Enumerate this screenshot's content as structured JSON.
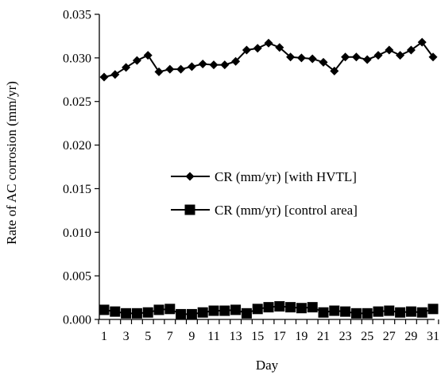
{
  "chart_data": {
    "type": "line",
    "title": "",
    "xlabel": "Day",
    "ylabel": "Rate of AC corrosion (mm/yr)",
    "xlim": [
      1,
      31
    ],
    "ylim": [
      0,
      0.035
    ],
    "x_ticks": [
      "1",
      "3",
      "5",
      "7",
      "9",
      "11",
      "13",
      "15",
      "17",
      "19",
      "21",
      "23",
      "25",
      "27",
      "29",
      "31"
    ],
    "y_ticks": [
      "0.000",
      "0.005",
      "0.010",
      "0.015",
      "0.020",
      "0.025",
      "0.030",
      "0.035"
    ],
    "x": [
      1,
      2,
      3,
      4,
      5,
      6,
      7,
      8,
      9,
      10,
      11,
      12,
      13,
      14,
      15,
      16,
      17,
      18,
      19,
      20,
      21,
      22,
      23,
      24,
      25,
      26,
      27,
      28,
      29,
      30,
      31
    ],
    "legend_position": "center-right",
    "grid": false,
    "series": [
      {
        "name": "CR (mm/yr) [with HVTL]",
        "marker": "diamond",
        "color": "#000000",
        "values": [
          0.0278,
          0.0281,
          0.0289,
          0.0297,
          0.0303,
          0.0284,
          0.0287,
          0.0287,
          0.029,
          0.0293,
          0.0292,
          0.0292,
          0.0296,
          0.0309,
          0.0311,
          0.0317,
          0.0312,
          0.0301,
          0.03,
          0.0299,
          0.0295,
          0.0285,
          0.0301,
          0.0301,
          0.0298,
          0.0303,
          0.0309,
          0.0303,
          0.0309,
          0.0318,
          0.0301
        ]
      },
      {
        "name": "CR (mm/yr) [control area]",
        "marker": "square",
        "color": "#000000",
        "values": [
          0.0011,
          0.0009,
          0.0007,
          0.0007,
          0.0008,
          0.0011,
          0.0012,
          0.0006,
          0.0006,
          0.0008,
          0.001,
          0.001,
          0.0011,
          0.0007,
          0.0012,
          0.0014,
          0.0015,
          0.0014,
          0.0013,
          0.0014,
          0.0008,
          0.001,
          0.0009,
          0.0007,
          0.0007,
          0.0009,
          0.001,
          0.0008,
          0.0009,
          0.0008,
          0.0012
        ]
      }
    ]
  }
}
